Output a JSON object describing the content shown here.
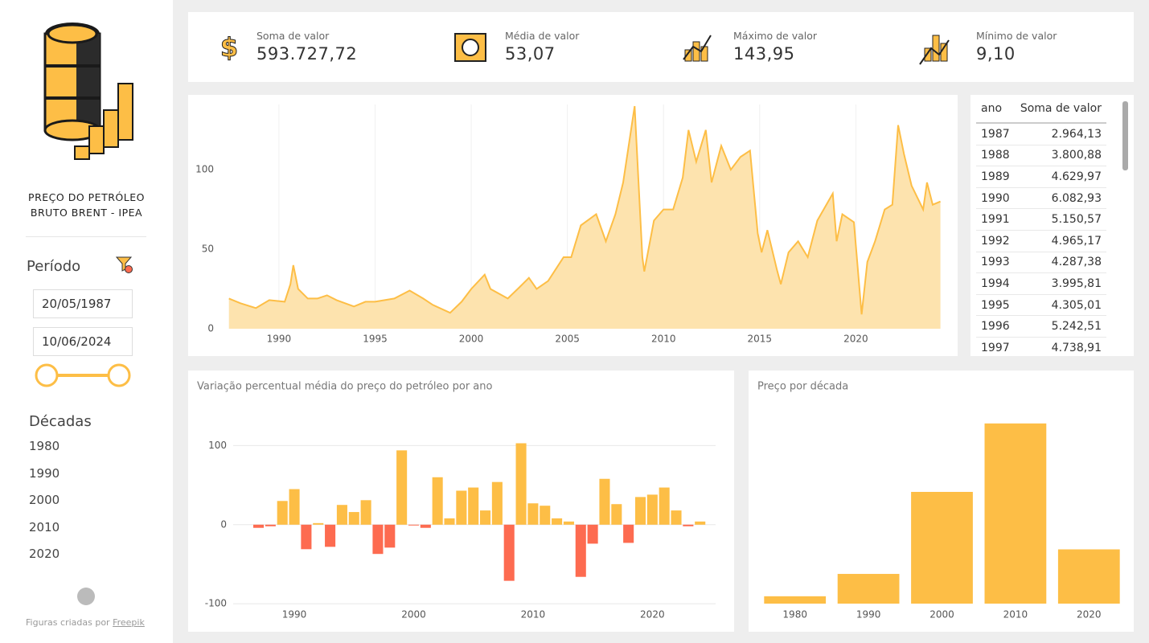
{
  "sidebar": {
    "title_line1": "PREÇO DO PETRÓLEO",
    "title_line2": "BRUTO BRENT - IPEA",
    "period_label": "Período",
    "start_date": "20/05/1987",
    "end_date": "10/06/2024",
    "decades_label": "Décadas",
    "decades": [
      "1980",
      "1990",
      "2000",
      "2010",
      "2020"
    ],
    "credit": "Figuras criadas por",
    "credit_link": "Freepik"
  },
  "kpis": [
    {
      "label": "Soma de valor",
      "value": "593.727,72"
    },
    {
      "label": "Média de valor",
      "value": "53,07"
    },
    {
      "label": "Máximo de valor",
      "value": "143,95"
    },
    {
      "label": "Mínimo de valor",
      "value": "9,10"
    }
  ],
  "table": {
    "columns": [
      "ano",
      "Soma de valor"
    ],
    "rows": [
      [
        "1987",
        "2.964,13"
      ],
      [
        "1988",
        "3.800,88"
      ],
      [
        "1989",
        "4.629,97"
      ],
      [
        "1990",
        "6.082,93"
      ],
      [
        "1991",
        "5.150,57"
      ],
      [
        "1992",
        "4.965,17"
      ],
      [
        "1993",
        "4.287,38"
      ],
      [
        "1994",
        "3.995,81"
      ],
      [
        "1995",
        "4.305,01"
      ],
      [
        "1996",
        "5.242,51"
      ],
      [
        "1997",
        "4.738,91"
      ]
    ]
  },
  "chart_data": [
    {
      "type": "area",
      "color": "#fdbe46",
      "fill": "#fde3ae",
      "grid": "x",
      "x": [
        1987.4,
        1988,
        1988.8,
        1989.5,
        1990.3,
        1990.6,
        1990.75,
        1991,
        1991.5,
        1992,
        1992.5,
        1993,
        1993.9,
        1994.5,
        1995,
        1996,
        1996.8,
        1997.5,
        1998,
        1998.9,
        1999.5,
        2000,
        2000.7,
        2001,
        2001.9,
        2002.5,
        2003,
        2003.4,
        2004,
        2004.8,
        2005.2,
        2005.7,
        2006.5,
        2007,
        2007.5,
        2007.9,
        2008.5,
        2008.9,
        2009,
        2009.5,
        2010,
        2010.5,
        2011,
        2011.3,
        2011.7,
        2012.2,
        2012.5,
        2013,
        2013.5,
        2014,
        2014.5,
        2014.9,
        2015.1,
        2015.4,
        2015.9,
        2016.1,
        2016.5,
        2017,
        2017.5,
        2018,
        2018.8,
        2019,
        2019.3,
        2019.9,
        2020.3,
        2020.6,
        2021,
        2021.5,
        2021.9,
        2022.2,
        2022.5,
        2022.9,
        2023.5,
        2023.7,
        2024,
        2024.4
      ],
      "values": [
        19,
        16,
        13,
        18,
        17,
        28,
        40,
        25,
        19,
        19,
        21,
        18,
        14,
        17,
        17,
        19,
        24,
        19,
        15,
        10,
        17,
        25,
        34,
        25,
        19,
        26,
        32,
        25,
        30,
        45,
        45,
        65,
        72,
        55,
        72,
        92,
        140,
        45,
        36,
        68,
        75,
        75,
        95,
        125,
        105,
        125,
        92,
        115,
        100,
        108,
        112,
        60,
        48,
        62,
        37,
        28,
        48,
        55,
        45,
        68,
        85,
        55,
        72,
        67,
        9,
        42,
        55,
        75,
        78,
        128,
        110,
        90,
        75,
        92,
        78,
        80
      ],
      "xlim": [
        1987.37,
        2024.5
      ],
      "xticks": [
        1990,
        1995,
        2000,
        2005,
        2010,
        2015,
        2020
      ],
      "ylim": [
        0,
        141
      ],
      "yticks": [
        0,
        50,
        100
      ]
    },
    {
      "type": "bar",
      "title": "Variação percentual média do preço do petróleo por ano",
      "color": "#fdbe46",
      "negative_color": "#fd6b50",
      "grid": "y",
      "x": [
        1987,
        1988,
        1989,
        1990,
        1991,
        1992,
        1993,
        1994,
        1995,
        1996,
        1997,
        1998,
        1999,
        2000,
        2001,
        2002,
        2003,
        2004,
        2005,
        2006,
        2007,
        2008,
        2009,
        2010,
        2011,
        2012,
        2013,
        2014,
        2015,
        2016,
        2017,
        2018,
        2019,
        2020,
        2021,
        2022,
        2023,
        2024
      ],
      "values": [
        -4,
        -2,
        30,
        45,
        -31,
        2,
        -28,
        25,
        16,
        31,
        -37,
        -29,
        94,
        -1,
        -4,
        60,
        8,
        43,
        47,
        18,
        54,
        -71,
        103,
        27,
        24,
        8,
        4,
        -66,
        -24,
        58,
        26,
        -23,
        35,
        38,
        47,
        18,
        -2,
        4
      ],
      "xlim": [
        1985.55,
        2025.3
      ],
      "xticks": [
        1990,
        2000,
        2010,
        2020
      ],
      "ylim": [
        -110,
        135
      ],
      "yticks": [
        -100,
        0,
        100
      ]
    },
    {
      "type": "column",
      "title": "Preço por década",
      "color": "#fdbe46",
      "categories": [
        "1980",
        "1990",
        "2000",
        "2010",
        "2020"
      ],
      "values": [
        11395,
        46000,
        173000,
        279000,
        84000
      ],
      "ylim": [
        0,
        290000
      ]
    }
  ]
}
